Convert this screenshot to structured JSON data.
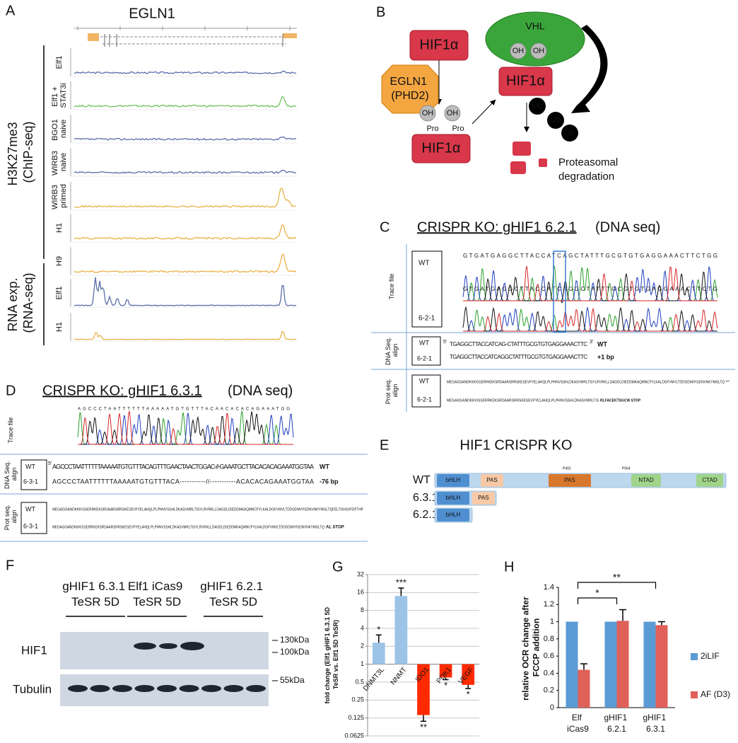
{
  "panel_labels": [
    "A",
    "B",
    "C",
    "D",
    "E",
    "F",
    "G",
    "H"
  ],
  "egln1": {
    "title": "EGLN1",
    "tracks": [
      "Elf1",
      "Elf1 + STAT3i",
      "BGO1 naive",
      "WIRB3 naive",
      "WIRB3 primed",
      "H1",
      "H9",
      "Elf1",
      "H1"
    ],
    "track_colors": [
      "#5b6ea8",
      "#6fbf5e",
      "#5b6ea8",
      "#5b6ea8",
      "#e9b247",
      "#e9b247",
      "#e9b247",
      "#5b6ea8",
      "#e9b247"
    ],
    "groups": [
      "H3K27me3 (ChIP-seq)",
      "RNA exp. (RNA-seq)"
    ]
  },
  "pathway": {
    "hif_top": "HIF1α",
    "egln1": "EGLN1 (PHD2)",
    "hif_bottom": "HIF1α",
    "hif_vhl": "HIF1α",
    "vhl": "VHL",
    "oh": [
      "OH",
      "OH",
      "OH",
      "OH"
    ],
    "pro": [
      "Pro",
      "Pro"
    ],
    "ub": [
      "Ub",
      "Ub",
      "Ub"
    ],
    "degradation": "Proteasomal degradation"
  },
  "crispr_621": {
    "title": "CRISPR KO: gHIF1 6.2.1",
    "subtitle": "(DNA seq)",
    "rows": [
      "Trace file",
      "DNA Seq. align",
      "Prot seq. align"
    ],
    "clones": [
      "WT",
      "6-2-1"
    ],
    "trace_seqs": [
      "GTGATGAGGCTTACCATCAGCTATTTGCGTGTGAGGAAACTTCTGG",
      "GTGATGAGGCTTACCATCAGGCTATTTGCGTGTGAGGAAACTTCTG"
    ],
    "mutation_mark": "*",
    "ends": [
      "5'",
      "3'"
    ],
    "dna_seqs": [
      "TGAGGCTTACCATCAG-CTATTTGCGTGTGAGGAAACTTC",
      "TGAGGCTTACCATCAGGCTATTTGCGTGTGAGGAAACTTC"
    ],
    "dna_notes": [
      "WT",
      "+1 bp"
    ],
    "prot_wt": "MEGAGGANDKKKISSERRKEKSRDAARSRRSKESEVFYELAHQLPLPHNVSSHLDKASVMRLTISYLRVRKLLDAGDLDIEDDMKAQMNCFYLKALDGFVMVLTDDGDMIYISDNVNKYMGLTQ ***",
    "prot_mut": "MEGAGGANDKKKISSERRKEKSRDAARSRRSKESEVFYELAHQLPLPHNVSSHLDKASVMRLTIS",
    "prot_mut_tail": "RLFACEKTSGCW STOP"
  },
  "crispr_631": {
    "title": "CRISPR KO: gHIF1 6.3.1",
    "subtitle": "(DNA seq)",
    "rows": [
      "Trace file",
      "DNA Seq. align",
      "Prot seq. align"
    ],
    "clones": [
      "WT",
      "6-3-1"
    ],
    "trace_seq": "AGCCCTAATTTTTTAAAAATGTGTTTACAACACACAGAAATGG",
    "ends": [
      "5'"
    ],
    "dna_seqs": [
      "AGCCCTAATTTTTTAAAAATGTGTTTACAGTTTGAACTAACTGGAC-//-GAAATGCTTACACACAGAAATGGTAA",
      "AGCCCTAATTTTTTAAAAATGTGTTTACA-----------//-----------ACACACAGAAATGGTAA"
    ],
    "dna_notes": [
      "WT",
      "-76 bp"
    ],
    "prot_wt": "MEGAGGANDKKKISSERRKEKSRDAARSRRSKESEVFYELAHQLPLPHNVSSHLDKASVMRLTISYLRVRKLLDAGDLDIEDDMKAQMNCFYLKALDGFVMVLTDDGDMIYISDNVNKYMGLTQFELTGHSVFDFTHP",
    "prot_mut": "MEGAGGANDKKKISSERRKEKSRDAARSRRSKESEVFYELAHQLPLPHNVSSHLDKASVMRLTISYLRVRKLLDAGDLDIEDDMKAQMNCFYLKALDGFVMVLTDDGDMIYISDNVNKYMGLTQ",
    "prot_mut_tail": "AL STOP"
  },
  "domains": {
    "title": "HIF1 CRISPR KO",
    "rows": [
      "WT",
      "6.3.1",
      "6.2.1"
    ],
    "names": [
      "bHLH",
      "PAS",
      "PAS",
      "NTAD",
      "CTAD"
    ],
    "sites": [
      "P402",
      "P564"
    ]
  },
  "western": {
    "lanes": [
      "gHIF1 6.3.1 TeSR 5D",
      "Elf1 iCas9 TeSR 5D",
      "gHIF1 6.2.1 TeSR 5D"
    ],
    "blots": [
      "HIF1",
      "Tubulin"
    ],
    "markers": [
      "130kDa",
      "100kDa",
      "55kDa"
    ]
  },
  "chart_data": [
    {
      "type": "bar",
      "ylabel": "fold change (Elf1 gHIF1 6.3.1 5D TeSR vs. Elf1 5D TeSR)",
      "categories": [
        "DNMT3L",
        "NNMT",
        "IDO1",
        "PDK1",
        "VEGF"
      ],
      "values": [
        2.3,
        14,
        0.14,
        0.6,
        0.45
      ],
      "errors": [
        0.8,
        5,
        0.03,
        0.05,
        0.06
      ],
      "colors": [
        "#9dc3e6",
        "#9dc3e6",
        "#ff2a00",
        "#ff2a00",
        "#ff2a00"
      ],
      "annotations": [
        "*",
        "***",
        "**",
        "*",
        "*"
      ],
      "log_scale": true,
      "ylim": [
        0.0625,
        32
      ],
      "yticks": [
        0.0625,
        0.125,
        0.25,
        0.5,
        1,
        2,
        4,
        8,
        16,
        32
      ],
      "grid": true
    },
    {
      "type": "grouped_bar",
      "ylabel": "relative OCR change after FCCP addition",
      "categories": [
        "Elf iCas9",
        "gHIF1 6.2.1",
        "gHIF1 6.3.1"
      ],
      "series": [
        {
          "name": "2iLIF",
          "color": "#5b9bd5",
          "values": [
            1,
            1,
            1
          ]
        },
        {
          "name": "AF (D3)",
          "color": "#e0605a",
          "values": [
            0.44,
            1.01,
            0.96
          ],
          "errors": [
            0.07,
            0.13,
            0.04
          ]
        }
      ],
      "significance": [
        {
          "label": "*",
          "from": "Elf iCas9",
          "to": "gHIF1 6.2.1"
        },
        {
          "label": "**",
          "from": "Elf iCas9",
          "to": "gHIF1 6.3.1"
        }
      ],
      "ylim": [
        0,
        1.4
      ],
      "yticks": [
        0,
        0.2,
        0.4,
        0.6,
        0.8,
        1,
        1.2,
        1.4
      ],
      "grid": false,
      "legend": "right"
    }
  ]
}
